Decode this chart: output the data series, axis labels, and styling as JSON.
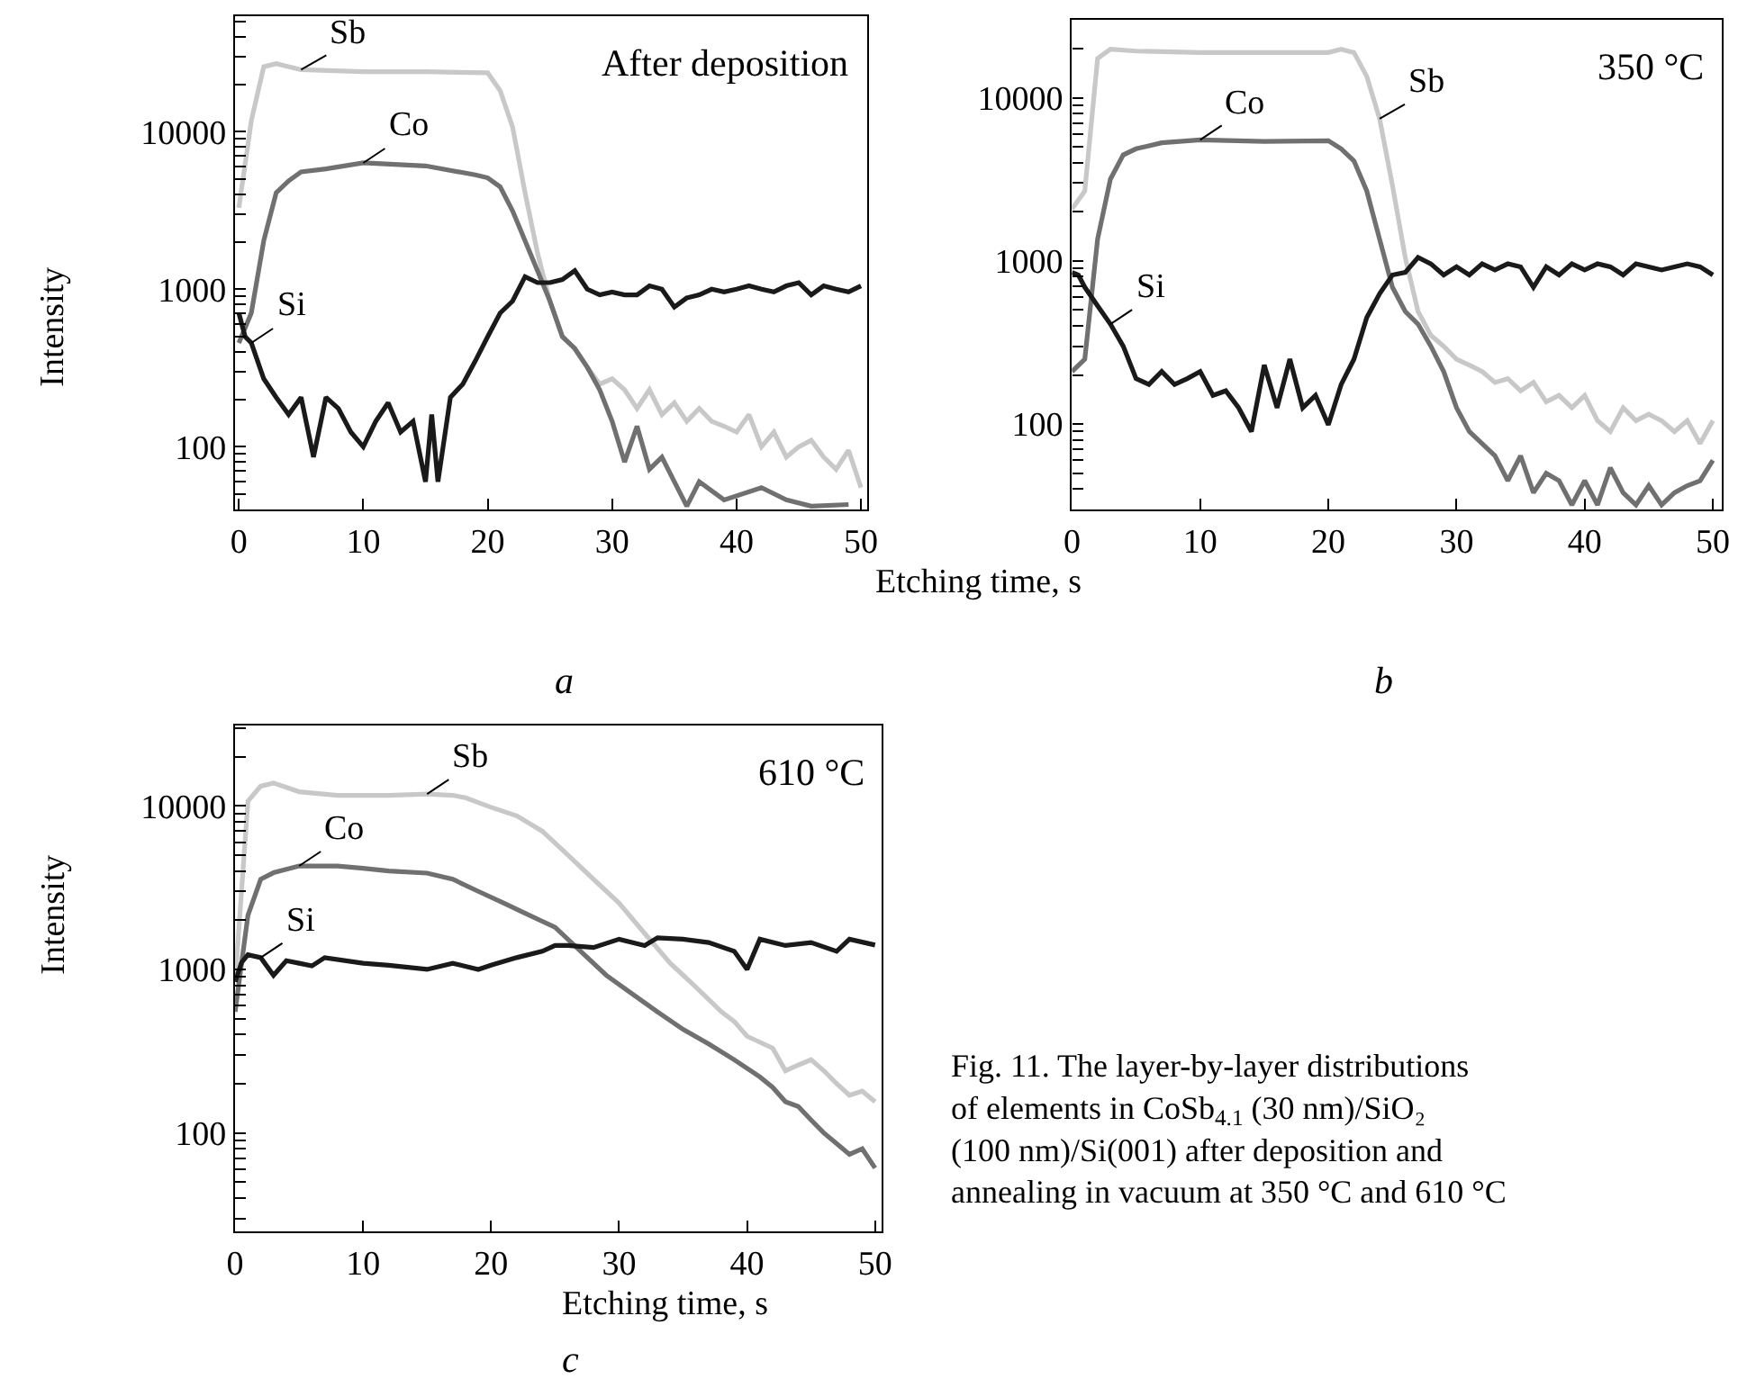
{
  "chart_data": [
    {
      "type": "line",
      "ylabel": "Intensity",
      "xlabel": "Etching time, s",
      "log": true,
      "marker": "none",
      "line_style": "solid",
      "xlim": [
        -0.3,
        50.5
      ],
      "xticks": [
        0,
        10,
        20,
        30,
        40,
        50
      ],
      "ylim": [
        40,
        54000
      ],
      "yticks": [
        {
          "value": 40,
          "label": null
        },
        {
          "value": 50,
          "label": null
        },
        {
          "value": 60,
          "label": null
        },
        {
          "value": 70,
          "label": null
        },
        {
          "value": 80,
          "label": null
        },
        {
          "value": 90,
          "label": null
        },
        100,
        {
          "value": 200,
          "label": null
        },
        {
          "value": 300,
          "label": null
        },
        {
          "value": 400,
          "label": null
        },
        {
          "value": 500,
          "label": null
        },
        {
          "value": 600,
          "label": null
        },
        {
          "value": 700,
          "label": null
        },
        {
          "value": 800,
          "label": null
        },
        {
          "value": 900,
          "label": null
        },
        1000,
        {
          "value": 2000,
          "label": null
        },
        {
          "value": 3000,
          "label": null
        },
        {
          "value": 4000,
          "label": null
        },
        {
          "value": 5000,
          "label": null
        },
        {
          "value": 6000,
          "label": null
        },
        {
          "value": 7000,
          "label": null
        },
        {
          "value": 8000,
          "label": null
        },
        {
          "value": 9000,
          "label": null
        },
        10000,
        {
          "value": 20000,
          "label": null
        },
        {
          "value": 30000,
          "label": null
        },
        {
          "value": 40000,
          "label": null
        },
        {
          "value": 50000,
          "label": null
        }
      ],
      "annotations": [
        "After deposition",
        "a"
      ],
      "series": [
        {
          "name": "Sb",
          "color": "#c8c8c8",
          "x": [
            0,
            1,
            2,
            3,
            5,
            10,
            15,
            20,
            21,
            22,
            23,
            24,
            25,
            26,
            27,
            28,
            29,
            30,
            31,
            32,
            33,
            34,
            35,
            36,
            37,
            38,
            39,
            40,
            41,
            42,
            43,
            44,
            45,
            46,
            47,
            48,
            49,
            50
          ],
          "values": [
            3280,
            11700,
            25800,
            27000,
            24700,
            24000,
            24000,
            23600,
            18200,
            10700,
            4100,
            1700,
            840,
            500,
            420,
            320,
            250,
            270,
            230,
            175,
            230,
            160,
            190,
            145,
            175,
            145,
            135,
            124,
            160,
            100,
            124,
            86,
            100,
            110,
            86,
            72,
            95,
            55
          ]
        },
        {
          "name": "Co",
          "color": "#707070",
          "x": [
            0,
            1,
            2,
            3,
            4,
            5,
            7,
            10,
            15,
            19,
            20,
            21,
            22,
            23,
            24,
            25,
            26,
            27,
            28,
            29,
            30,
            31,
            32,
            33,
            34,
            35,
            36,
            37,
            39,
            42,
            44,
            46,
            49
          ],
          "values": [
            456,
            706,
            2030,
            4100,
            4870,
            5550,
            5800,
            6330,
            6060,
            5320,
            5090,
            4460,
            3140,
            2030,
            1310,
            840,
            500,
            420,
            320,
            230,
            145,
            80,
            135,
            72,
            86,
            60,
            42,
            60,
            46,
            55,
            46,
            42,
            43
          ]
        },
        {
          "name": "Si",
          "color": "#1a1a1a",
          "x": [
            0,
            0.5,
            1,
            2,
            3,
            4,
            5,
            6,
            7,
            8,
            9,
            10,
            11,
            12,
            13,
            14,
            15,
            15.5,
            16,
            17,
            18,
            19,
            20,
            21,
            22,
            23,
            24,
            25,
            26,
            27,
            28,
            29,
            30,
            31,
            32,
            33,
            34,
            35,
            36,
            37,
            38,
            39,
            40,
            41,
            42,
            43,
            44,
            45,
            46,
            47,
            48,
            49,
            50
          ],
          "values": [
            706,
            500,
            456,
            270,
            206,
            160,
            206,
            86,
            206,
            175,
            124,
            100,
            145,
            190,
            124,
            145,
            60,
            160,
            60,
            206,
            250,
            350,
            500,
            706,
            840,
            1200,
            1100,
            1100,
            1150,
            1310,
            1000,
            920,
            960,
            920,
            920,
            1050,
            1000,
            770,
            880,
            920,
            1000,
            960,
            1000,
            1050,
            1000,
            960,
            1050,
            1100,
            920,
            1050,
            1000,
            960,
            1050
          ]
        }
      ]
    },
    {
      "type": "line",
      "log": true,
      "marker": "none",
      "line_style": "solid",
      "xlim": [
        0,
        50.7
      ],
      "xticks": [
        0,
        10,
        20,
        30,
        40,
        50
      ],
      "ylim": [
        30,
        30000
      ],
      "yticks": [
        {
          "value": 30,
          "label": null
        },
        {
          "value": 40,
          "label": null
        },
        {
          "value": 50,
          "label": null
        },
        {
          "value": 60,
          "label": null
        },
        {
          "value": 70,
          "label": null
        },
        {
          "value": 80,
          "label": null
        },
        {
          "value": 90,
          "label": null
        },
        100,
        {
          "value": 200,
          "label": null
        },
        {
          "value": 300,
          "label": null
        },
        {
          "value": 400,
          "label": null
        },
        {
          "value": 500,
          "label": null
        },
        {
          "value": 600,
          "label": null
        },
        {
          "value": 700,
          "label": null
        },
        {
          "value": 800,
          "label": null
        },
        {
          "value": 900,
          "label": null
        },
        1000,
        {
          "value": 2000,
          "label": null
        },
        {
          "value": 3000,
          "label": null
        },
        {
          "value": 4000,
          "label": null
        },
        {
          "value": 5000,
          "label": null
        },
        {
          "value": 6000,
          "label": null
        },
        {
          "value": 7000,
          "label": null
        },
        {
          "value": 8000,
          "label": null
        },
        {
          "value": 9000,
          "label": null
        },
        10000,
        {
          "value": 20000,
          "label": null
        },
        {
          "value": 30000,
          "label": null
        }
      ],
      "annotations": [
        "350 °C",
        "b"
      ],
      "series": [
        {
          "name": "Sb",
          "color": "#c8c8c8",
          "x": [
            0,
            1,
            2,
            3,
            5,
            10,
            15,
            20,
            21,
            22,
            23,
            24,
            25,
            26,
            27,
            28,
            29,
            30,
            31,
            32,
            33,
            34,
            35,
            36,
            37,
            38,
            39,
            40,
            41,
            42,
            43,
            44,
            45,
            46,
            47,
            48,
            49,
            50
          ],
          "values": [
            2080,
            2680,
            17400,
            19800,
            19300,
            18900,
            18900,
            18900,
            19800,
            18900,
            13500,
            7430,
            2910,
            1050,
            490,
            350,
            300,
            250,
            230,
            210,
            180,
            190,
            160,
            180,
            137,
            150,
            126,
            150,
            105,
            90,
            126,
            105,
            115,
            105,
            90,
            105,
            76,
            105
          ]
        },
        {
          "name": "Co",
          "color": "#707070",
          "x": [
            0,
            1,
            2,
            3,
            4,
            5,
            7,
            10,
            15,
            20,
            21,
            22,
            23,
            24,
            25,
            26,
            27,
            28,
            29,
            30,
            31,
            32,
            33,
            34,
            35,
            36,
            37,
            38,
            39,
            40,
            41,
            42,
            43,
            44,
            45,
            46,
            47,
            48,
            49,
            50
          ],
          "values": [
            210,
            250,
            1360,
            3170,
            4460,
            4860,
            5290,
            5520,
            5400,
            5450,
            4860,
            4100,
            2680,
            1360,
            690,
            490,
            410,
            300,
            210,
            126,
            90,
            76,
            64,
            45,
            64,
            38,
            50,
            45,
            32,
            45,
            32,
            54,
            38,
            32,
            42,
            32,
            38,
            42,
            45,
            60
          ]
        },
        {
          "name": "Si",
          "color": "#1a1a1a",
          "x": [
            0,
            0.5,
            1,
            2,
            3,
            4,
            5,
            6,
            7,
            8,
            9,
            10,
            11,
            12,
            13,
            14,
            15,
            16,
            17,
            18,
            19,
            20,
            21,
            22,
            23,
            24,
            25,
            26,
            27,
            28,
            29,
            30,
            31,
            32,
            33,
            34,
            35,
            36,
            37,
            38,
            39,
            40,
            41,
            42,
            43,
            44,
            45,
            46,
            47,
            48,
            49,
            50
          ],
          "values": [
            850,
            820,
            690,
            530,
            410,
            300,
            190,
            175,
            210,
            175,
            190,
            210,
            150,
            160,
            126,
            90,
            230,
            126,
            250,
            126,
            150,
            99,
            175,
            250,
            450,
            630,
            820,
            850,
            1050,
            960,
            820,
            920,
            820,
            960,
            880,
            960,
            920,
            690,
            920,
            820,
            960,
            880,
            960,
            920,
            820,
            960,
            920,
            880,
            920,
            960,
            920,
            820
          ]
        }
      ]
    },
    {
      "type": "line",
      "ylabel": "Intensity",
      "xlabel": "Etching time, s",
      "log": true,
      "marker": "none",
      "line_style": "solid",
      "xlim": [
        0,
        50.5
      ],
      "xticks": [
        0,
        10,
        20,
        30,
        40,
        50
      ],
      "ylim": [
        25,
        31000
      ],
      "yticks": [
        {
          "value": 30,
          "label": null
        },
        {
          "value": 40,
          "label": null
        },
        {
          "value": 50,
          "label": null
        },
        {
          "value": 60,
          "label": null
        },
        {
          "value": 70,
          "label": null
        },
        {
          "value": 80,
          "label": null
        },
        {
          "value": 90,
          "label": null
        },
        100,
        {
          "value": 200,
          "label": null
        },
        {
          "value": 300,
          "label": null
        },
        {
          "value": 400,
          "label": null
        },
        {
          "value": 500,
          "label": null
        },
        {
          "value": 600,
          "label": null
        },
        {
          "value": 700,
          "label": null
        },
        {
          "value": 800,
          "label": null
        },
        {
          "value": 900,
          "label": null
        },
        1000,
        {
          "value": 2000,
          "label": null
        },
        {
          "value": 3000,
          "label": null
        },
        {
          "value": 4000,
          "label": null
        },
        {
          "value": 5000,
          "label": null
        },
        {
          "value": 6000,
          "label": null
        },
        {
          "value": 7000,
          "label": null
        },
        {
          "value": 8000,
          "label": null
        },
        {
          "value": 9000,
          "label": null
        },
        10000,
        {
          "value": 20000,
          "label": null
        },
        {
          "value": 30000,
          "label": null
        }
      ],
      "annotations": [
        "610 °C",
        "c",
        "Fig. 11. The layer-by-layer distributions of elements in CoSb$_{4.1}$ (30 nm)/SiO₂ (100 nm)/Si(001) after deposition and annealing in vacuum at 350 °C and 610 °C"
      ],
      "series": [
        {
          "name": "Sb",
          "color": "#c8c8c8",
          "x": [
            0,
            0.5,
            1,
            2,
            3,
            5,
            8,
            10,
            12,
            15,
            17,
            18,
            20,
            22,
            24,
            26,
            28,
            30,
            32,
            34,
            36,
            38,
            39,
            40,
            42,
            43,
            44,
            45,
            46,
            47,
            48,
            49,
            50
          ],
          "values": [
            840,
            3000,
            10700,
            13200,
            13800,
            12200,
            11600,
            11600,
            11600,
            11800,
            11600,
            11200,
            9800,
            8700,
            7000,
            5000,
            3560,
            2540,
            1660,
            1090,
            780,
            550,
            480,
            390,
            330,
            240,
            260,
            280,
            240,
            200,
            170,
            180,
            155
          ]
        },
        {
          "name": "Co",
          "color": "#707070",
          "x": [
            0,
            1,
            2,
            3,
            5,
            8,
            10,
            12,
            15,
            17,
            19,
            21,
            23,
            25,
            27,
            29,
            31,
            33,
            35,
            37,
            39,
            41,
            42,
            43,
            44,
            45,
            46,
            47,
            48,
            49,
            50
          ],
          "values": [
            550,
            2140,
            3560,
            3900,
            4290,
            4290,
            4150,
            4000,
            3880,
            3560,
            3000,
            2540,
            2140,
            1810,
            1290,
            920,
            710,
            550,
            430,
            350,
            280,
            220,
            190,
            155,
            145,
            120,
            100,
            86,
            74,
            80,
            61
          ]
        },
        {
          "name": "Si",
          "color": "#1a1a1a",
          "x": [
            0,
            0.5,
            1,
            2,
            3,
            4,
            5,
            6,
            7,
            10,
            12,
            15,
            17,
            19,
            20,
            22,
            24,
            25,
            26,
            28,
            30,
            32,
            33,
            35,
            37,
            39,
            40,
            41,
            43,
            45,
            47,
            48,
            50
          ],
          "values": [
            840,
            1100,
            1230,
            1180,
            920,
            1130,
            1090,
            1050,
            1180,
            1090,
            1060,
            1000,
            1090,
            1000,
            1060,
            1180,
            1290,
            1400,
            1400,
            1360,
            1530,
            1400,
            1560,
            1530,
            1460,
            1290,
            1000,
            1530,
            1400,
            1460,
            1290,
            1530,
            1410
          ]
        }
      ]
    }
  ]
}
